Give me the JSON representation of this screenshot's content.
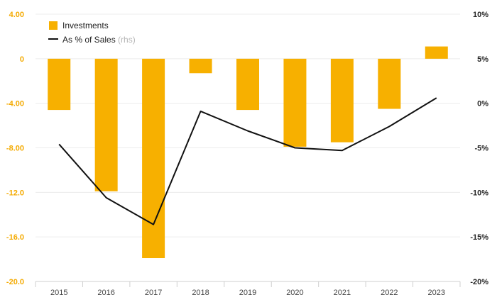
{
  "chart_data": {
    "type": "bar",
    "categories": [
      "2015",
      "2016",
      "2017",
      "2018",
      "2019",
      "2020",
      "2021",
      "2022",
      "2023"
    ],
    "series": [
      {
        "name": "Investments",
        "type": "bar",
        "axis": "left",
        "color": "#f7b000",
        "values": [
          -4.6,
          -11.9,
          -17.9,
          -1.3,
          -4.6,
          -7.9,
          -7.5,
          -4.5,
          1.1
        ]
      },
      {
        "name": "As % of Sales",
        "legend_note": "(rhs)",
        "type": "line",
        "axis": "right",
        "color": "#111111",
        "values": [
          -4.6,
          -10.6,
          -13.6,
          -0.9,
          -3.1,
          -5.0,
          -5.3,
          -2.6,
          0.6
        ]
      }
    ],
    "y_left": {
      "min": -20,
      "max": 4,
      "ticks": [
        "4.00",
        "0",
        "-4.00",
        "-8.00",
        "-12.0",
        "-16.0",
        "-20.0"
      ],
      "tick_color": "#f4aa00"
    },
    "y_right": {
      "min": -20,
      "max": 10,
      "ticks": [
        "10%",
        "5%",
        "0%",
        "-5%",
        "-10%",
        "-15%",
        "-20%"
      ]
    },
    "grid": true,
    "legend_position": "top-left"
  }
}
